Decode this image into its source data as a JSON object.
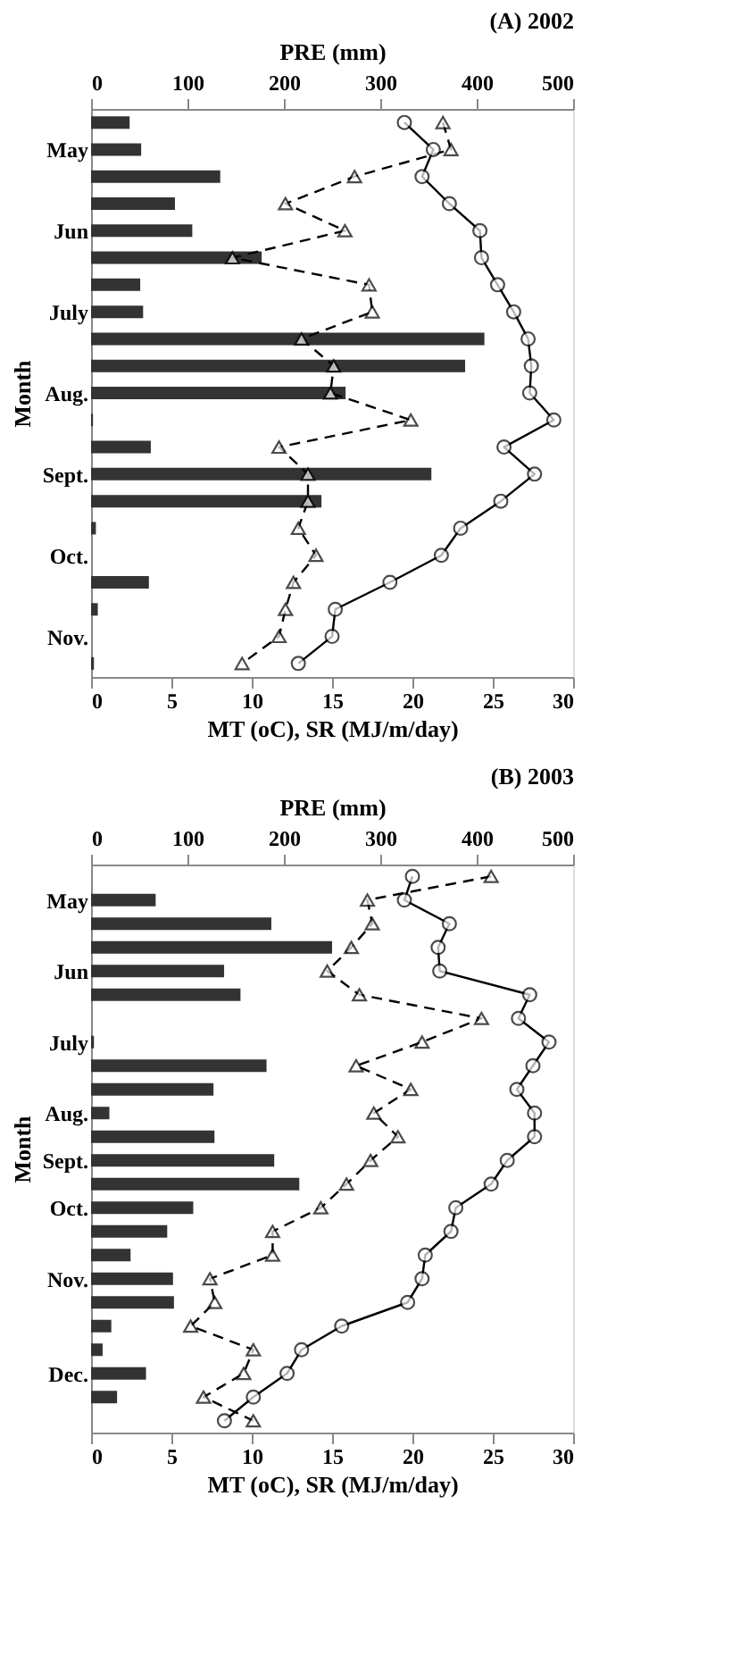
{
  "chart_data": [
    {
      "type": "bar",
      "orientation": "horizontal",
      "title": "(A) 2002",
      "xlabel": "MT (oC), SR (MJ/m/day)",
      "x2label": "PRE (mm)",
      "ylabel": "Month",
      "categories": [
        null,
        "May",
        null,
        null,
        "Jun",
        null,
        null,
        "July",
        null,
        null,
        "Aug.",
        null,
        null,
        "Sept.",
        null,
        null,
        "Oct.",
        null,
        null,
        "Nov.",
        null
      ],
      "xlim": [
        0,
        30
      ],
      "xticks": [
        0,
        5,
        10,
        15,
        20,
        25,
        30
      ],
      "x2lim": [
        0,
        500
      ],
      "x2ticks": [
        0,
        100,
        200,
        300,
        400,
        500
      ],
      "series": [
        {
          "type": "bar",
          "axis": "x2",
          "color": "#333333",
          "values": [
            40,
            52,
            134,
            87,
            105,
            177,
            51,
            54,
            408,
            388,
            264,
            2,
            62,
            353,
            239,
            5,
            null,
            60,
            7,
            null,
            3
          ]
        },
        {
          "type": "line",
          "color": "#000000",
          "marker": "circle",
          "line_style": "solid",
          "values": [
            19.5,
            21.3,
            20.6,
            22.3,
            24.2,
            24.3,
            25.3,
            26.3,
            27.2,
            27.4,
            27.3,
            28.8,
            25.7,
            27.6,
            25.5,
            23.0,
            21.8,
            18.6,
            15.2,
            15.0,
            12.9
          ]
        },
        {
          "type": "line",
          "color": "#000000",
          "marker": "triangle",
          "line_style": "dashed",
          "values": [
            21.9,
            22.4,
            16.4,
            12.1,
            15.8,
            8.8,
            17.3,
            17.5,
            13.1,
            15.1,
            14.9,
            19.9,
            11.7,
            13.5,
            13.5,
            12.9,
            14.0,
            12.6,
            12.1,
            11.7,
            9.4
          ]
        }
      ]
    },
    {
      "type": "bar",
      "orientation": "horizontal",
      "title": "(B) 2003",
      "xlabel": "MT (oC), SR (MJ/m/day)",
      "x2label": "PRE (mm)",
      "ylabel": "Month",
      "categories": [
        null,
        "May",
        null,
        null,
        "Jun",
        null,
        null,
        "July",
        null,
        null,
        "Aug.",
        null,
        "Sept.",
        null,
        "Oct.",
        null,
        null,
        "Nov.",
        null,
        null,
        null,
        "Dec.",
        null,
        null
      ],
      "xlim": [
        0,
        30
      ],
      "xticks": [
        0,
        5,
        10,
        15,
        20,
        25,
        30
      ],
      "x2lim": [
        0,
        500
      ],
      "x2ticks": [
        0,
        100,
        200,
        300,
        400,
        500
      ],
      "series": [
        {
          "type": "bar",
          "axis": "x2",
          "color": "#333333",
          "values": [
            null,
            67,
            187,
            250,
            138,
            155,
            null,
            3,
            182,
            127,
            19,
            128,
            190,
            216,
            106,
            79,
            41,
            85,
            86,
            21,
            12,
            57,
            27,
            null
          ]
        },
        {
          "type": "line",
          "color": "#000000",
          "marker": "circle",
          "line_style": "solid",
          "values": [
            20.0,
            19.5,
            22.3,
            21.6,
            21.7,
            27.3,
            26.6,
            28.5,
            27.5,
            26.5,
            27.6,
            27.6,
            25.9,
            24.9,
            22.7,
            22.4,
            20.8,
            20.6,
            19.7,
            15.6,
            13.1,
            12.2,
            10.1,
            8.3
          ]
        },
        {
          "type": "line",
          "color": "#000000",
          "marker": "triangle",
          "line_style": "dashed",
          "values": [
            24.9,
            17.2,
            17.5,
            16.2,
            14.7,
            16.7,
            24.3,
            20.6,
            16.5,
            19.9,
            17.6,
            19.1,
            17.4,
            15.9,
            14.3,
            11.3,
            11.3,
            7.4,
            7.7,
            6.2,
            10.1,
            9.5,
            7.0,
            10.1
          ]
        }
      ]
    }
  ]
}
